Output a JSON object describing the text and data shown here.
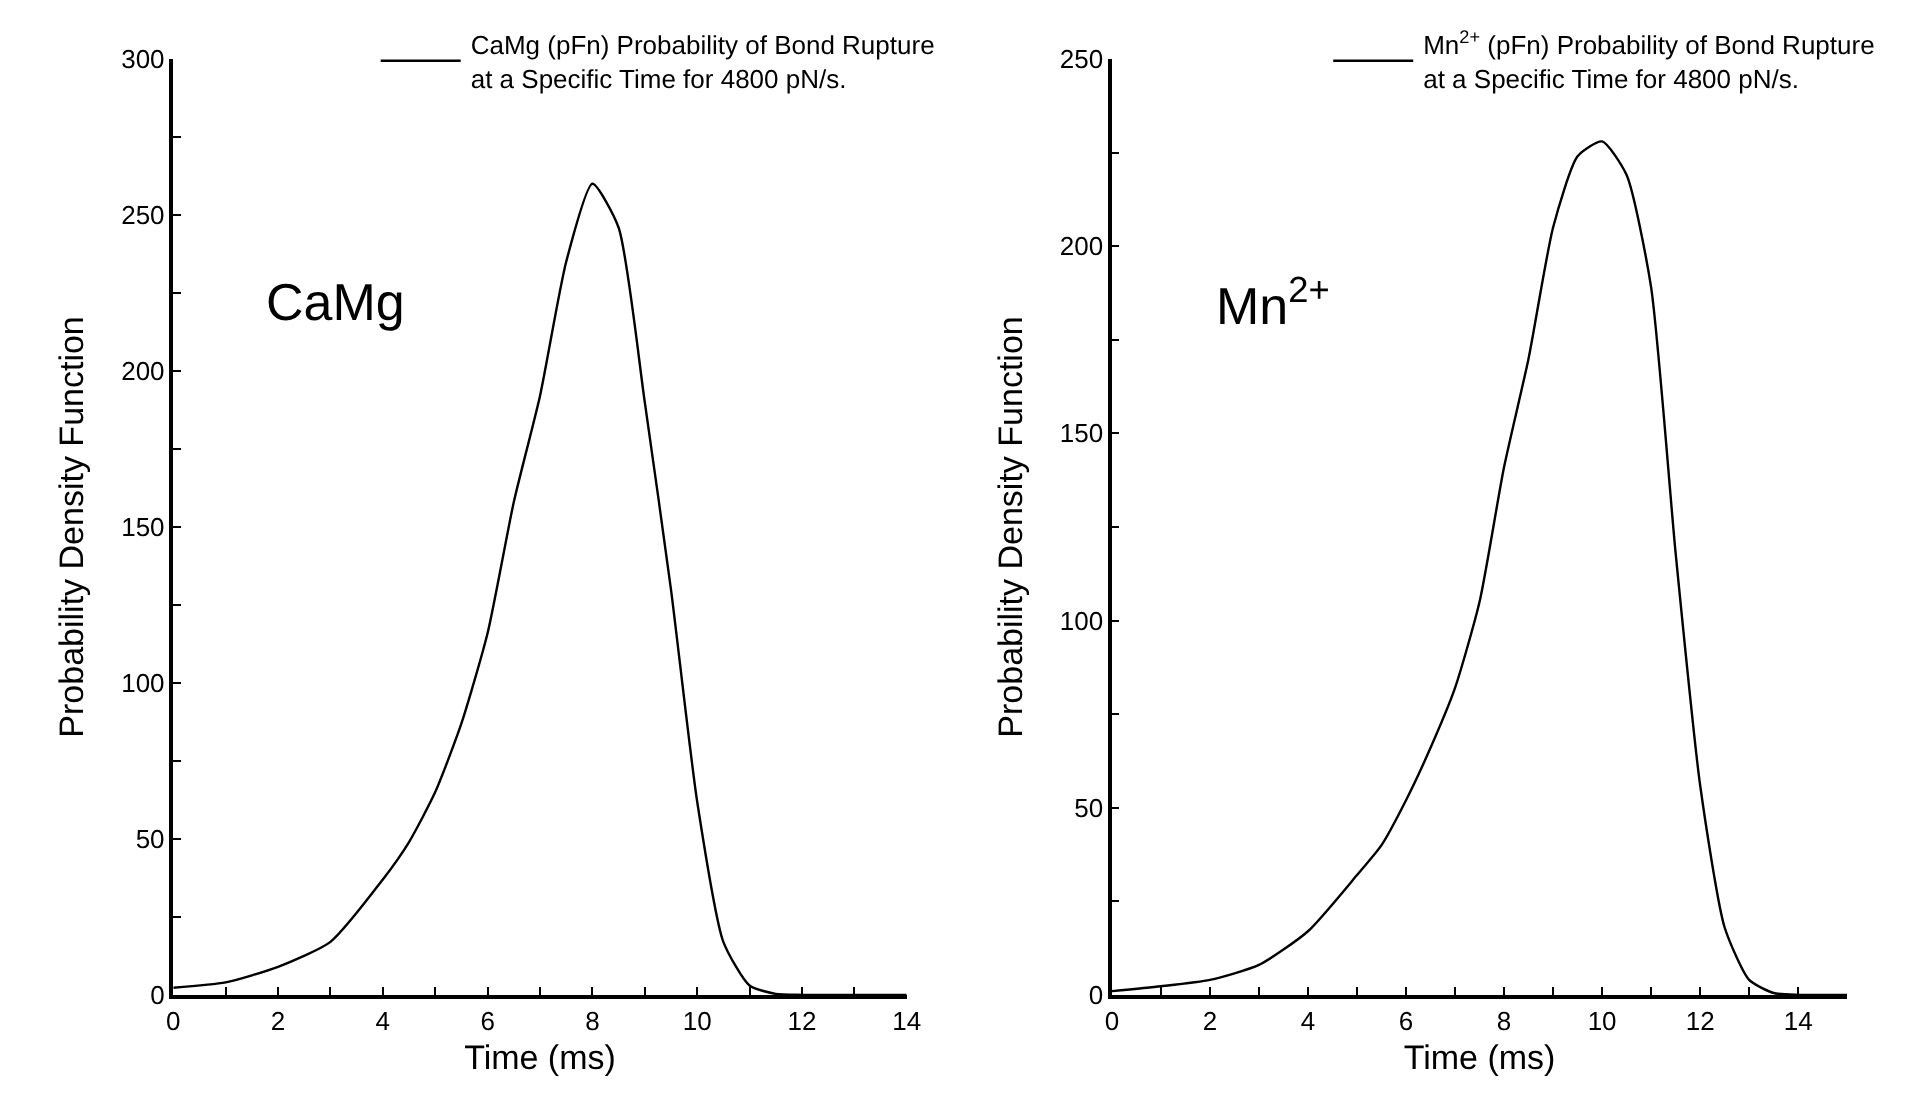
{
  "chart_data": [
    {
      "type": "line",
      "xlabel": "Time (ms)",
      "ylabel": "Probability Density Function",
      "annotations": [
        "CaMg"
      ],
      "legend": "top right",
      "marker": "none",
      "line_style": "solid",
      "x": [
        0,
        1,
        2,
        3,
        4,
        4.5,
        5,
        5.5,
        6,
        6.5,
        7,
        7.5,
        8,
        8.5,
        9,
        9.5,
        10,
        10.5,
        11,
        11.5,
        12,
        13,
        14
      ],
      "series": [
        {
          "name": "CaMg (pFn) Probability of Bond Rupture\nat a Specific Time for 4800 pN/s.",
          "color": "#000000",
          "values": [
            2.3,
            4,
            9,
            17,
            37,
            49,
            65,
            87,
            116,
            158,
            192,
            235,
            260,
            246,
            190,
            130,
            62,
            17,
            3,
            0.3,
            0,
            0,
            0
          ]
        }
      ],
      "xlim": [
        0,
        14
      ],
      "xticks": [
        0,
        {
          "value": 1,
          "label": null
        },
        2,
        {
          "value": 3,
          "label": null
        },
        4,
        {
          "value": 5,
          "label": null
        },
        6,
        {
          "value": 7,
          "label": null
        },
        8,
        {
          "value": 9,
          "label": null
        },
        10,
        {
          "value": 11,
          "label": null
        },
        12,
        {
          "value": 13,
          "label": null
        },
        14
      ],
      "ylim": [
        0,
        300
      ],
      "yticks": [
        0,
        {
          "value": 25,
          "label": null
        },
        50,
        {
          "value": 75,
          "label": null
        },
        100,
        {
          "value": 125,
          "label": null
        },
        150,
        {
          "value": 175,
          "label": null
        },
        200,
        {
          "value": 225,
          "label": null
        },
        250,
        {
          "value": 275,
          "label": null
        },
        300
      ]
    },
    {
      "type": "line",
      "xlabel": "Time (ms)",
      "ylabel": "Probability Density Function",
      "annotations": [
        "Mn$^{2+}$"
      ],
      "legend": "top right",
      "marker": "none",
      "line_style": "solid",
      "x": [
        0,
        1,
        2,
        3,
        4,
        5,
        5.5,
        6,
        6.5,
        7,
        7.5,
        8,
        8.5,
        9,
        9.5,
        10,
        10.5,
        11,
        11.5,
        12,
        12.5,
        13,
        13.5,
        14,
        15
      ],
      "series": [
        {
          "name": "Mn$^{2+}$ (pFn) Probability of Bond Rupture\nat a Specific Time for 4800 pN/s.",
          "color": "#000000",
          "values": [
            1,
            2.3,
            4,
            8,
            17,
            32,
            40,
            52,
            66,
            82,
            105,
            141,
            170,
            205,
            224,
            228,
            219,
            189,
            118,
            56,
            18,
            4,
            0.5,
            0,
            0
          ]
        }
      ],
      "xlim": [
        0,
        15
      ],
      "xticks": [
        0,
        {
          "value": 1,
          "label": null
        },
        2,
        {
          "value": 3,
          "label": null
        },
        4,
        {
          "value": 5,
          "label": null
        },
        6,
        {
          "value": 7,
          "label": null
        },
        8,
        {
          "value": 9,
          "label": null
        },
        10,
        {
          "value": 11,
          "label": null
        },
        12,
        {
          "value": 13,
          "label": null
        },
        14
      ],
      "ylim": [
        0,
        250
      ],
      "yticks": [
        0,
        {
          "value": 25,
          "label": null
        },
        50,
        {
          "value": 75,
          "label": null
        },
        100,
        {
          "value": 125,
          "label": null
        },
        150,
        {
          "value": 175,
          "label": null
        },
        200,
        {
          "value": 225,
          "label": null
        },
        250
      ]
    }
  ]
}
